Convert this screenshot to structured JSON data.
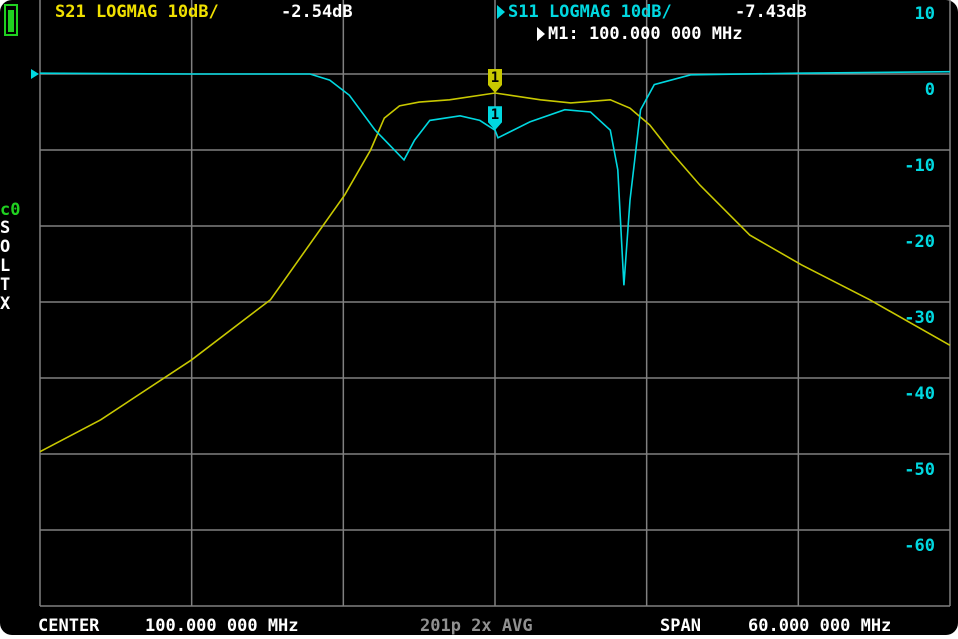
{
  "header": {
    "ch1_label": "S21 LOGMAG 10dB/",
    "ch1_value": "-2.54dB",
    "ch2_label": "S11 LOGMAG 10dB/",
    "ch2_value": "-7.43dB",
    "marker_info": "M1: 100.000 000 MHz"
  },
  "sidebar": {
    "cal": "c0",
    "letters": [
      "S",
      "O",
      "L",
      "T",
      "X"
    ]
  },
  "footer": {
    "center_label": "CENTER",
    "center_value": "100.000 000 MHz",
    "points": "201p 2x AVG",
    "span_label": "SPAN",
    "span_value": "60.000 000 MHz"
  },
  "chart_data": {
    "type": "line",
    "xlim": [
      70,
      130
    ],
    "xticks": [
      70,
      80,
      90,
      100,
      110,
      120,
      130
    ],
    "ylim": [
      -70,
      10
    ],
    "yticks": [
      10,
      0,
      -10,
      -20,
      -30,
      -40,
      -50,
      -60,
      -70
    ],
    "grid": true,
    "series": [
      {
        "name": "S21",
        "color": "#c8c800",
        "x": [
          70,
          74,
          80,
          85.2,
          90.1,
          91.8,
          92.7,
          93.7,
          95,
          97,
          100,
          103,
          105,
          107.6,
          108.9,
          110.2,
          111.5,
          113.5,
          116.8,
          120.2,
          124.7,
          130
        ],
        "values": [
          -49.7,
          -45.5,
          -37.6,
          -29.7,
          -15.9,
          -10,
          -5.8,
          -4.2,
          -3.7,
          -3.4,
          -2.5,
          -3.4,
          -3.8,
          -3.4,
          -4.5,
          -6.7,
          -10,
          -14.6,
          -21.2,
          -25.1,
          -29.7,
          -35.7
        ]
      },
      {
        "name": "S11",
        "color": "#00d8e0",
        "x": [
          70,
          80,
          87.8,
          89.1,
          90.4,
          92.1,
          94,
          94.7,
          95.7,
          97.7,
          99,
          100,
          100.2,
          102.3,
          104.6,
          106.3,
          107.6,
          108.1,
          108.5,
          108.9,
          109.6,
          110.5,
          112.9,
          120,
          130
        ],
        "values": [
          0.1,
          0,
          0,
          -0.8,
          -2.8,
          -7.4,
          -11.3,
          -8.7,
          -6.1,
          -5.5,
          -6.1,
          -7.4,
          -8.4,
          -6.3,
          -4.7,
          -5,
          -7.4,
          -12.6,
          -27.8,
          -16.6,
          -4.7,
          -1.4,
          -0.1,
          0.1,
          0.3
        ]
      }
    ],
    "markers": [
      {
        "label": "1",
        "x": 100
      }
    ]
  }
}
